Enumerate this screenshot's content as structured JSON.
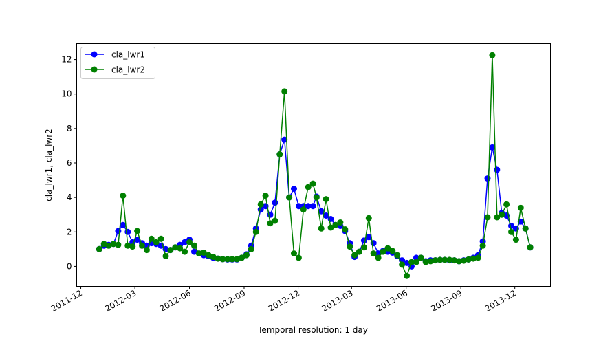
{
  "chart_data": {
    "type": "line",
    "title": "",
    "xlabel": "Temporal resolution: 1 day",
    "ylabel": "cla_lwr1, cla_lwr2",
    "xlim": [
      "2011-11-24",
      "2014-01-30"
    ],
    "ylim": [
      -1.16,
      12.92
    ],
    "grid": false,
    "legend_position": "top-left",
    "x_ticks": [
      {
        "date": "2011-12-01",
        "label": "2011-12"
      },
      {
        "date": "2012-03-01",
        "label": "2012-03"
      },
      {
        "date": "2012-06-01",
        "label": "2012-06"
      },
      {
        "date": "2012-09-01",
        "label": "2012-09"
      },
      {
        "date": "2012-12-01",
        "label": "2012-12"
      },
      {
        "date": "2013-03-01",
        "label": "2013-03"
      },
      {
        "date": "2013-06-01",
        "label": "2013-06"
      },
      {
        "date": "2013-09-01",
        "label": "2013-09"
      },
      {
        "date": "2013-12-01",
        "label": "2013-12"
      }
    ],
    "y_ticks": [
      0,
      2,
      4,
      6,
      8,
      10,
      12
    ],
    "x": [
      "2012-01-01",
      "2012-01-09",
      "2012-01-17",
      "2012-01-25",
      "2012-02-02",
      "2012-02-10",
      "2012-02-18",
      "2012-02-26",
      "2012-03-05",
      "2012-03-13",
      "2012-03-21",
      "2012-03-29",
      "2012-04-06",
      "2012-04-14",
      "2012-04-22",
      "2012-04-30",
      "2012-05-08",
      "2012-05-16",
      "2012-05-24",
      "2012-06-01",
      "2012-06-09",
      "2012-06-17",
      "2012-06-25",
      "2012-07-03",
      "2012-07-11",
      "2012-07-19",
      "2012-07-27",
      "2012-08-04",
      "2012-08-12",
      "2012-08-20",
      "2012-08-28",
      "2012-09-05",
      "2012-09-13",
      "2012-09-21",
      "2012-09-29",
      "2012-10-07",
      "2012-10-15",
      "2012-10-23",
      "2012-10-31",
      "2012-11-08",
      "2012-11-16",
      "2012-11-24",
      "2012-12-02",
      "2012-12-10",
      "2012-12-18",
      "2012-12-26",
      "2013-01-01",
      "2013-01-09",
      "2013-01-17",
      "2013-01-25",
      "2013-02-02",
      "2013-02-10",
      "2013-02-18",
      "2013-02-26",
      "2013-03-06",
      "2013-03-14",
      "2013-03-22",
      "2013-03-30",
      "2013-04-07",
      "2013-04-15",
      "2013-04-23",
      "2013-05-01",
      "2013-05-09",
      "2013-05-17",
      "2013-05-25",
      "2013-06-02",
      "2013-06-10",
      "2013-06-18",
      "2013-06-26",
      "2013-07-04",
      "2013-07-12",
      "2013-07-20",
      "2013-07-28",
      "2013-08-05",
      "2013-08-13",
      "2013-08-21",
      "2013-08-29",
      "2013-09-06",
      "2013-09-14",
      "2013-09-22",
      "2013-09-30",
      "2013-10-08",
      "2013-10-16",
      "2013-10-24",
      "2013-11-01",
      "2013-11-09",
      "2013-11-17",
      "2013-11-25",
      "2013-12-03",
      "2013-12-11",
      "2013-12-19",
      "2013-12-27"
    ],
    "series": [
      {
        "name": "cla_lwr1",
        "color": "#0000ff",
        "marker": "circle",
        "values": [
          1.0,
          1.2,
          1.25,
          1.3,
          2.05,
          2.4,
          2.0,
          1.4,
          1.55,
          1.35,
          1.2,
          1.35,
          1.3,
          1.2,
          1.0,
          0.95,
          1.1,
          1.25,
          1.4,
          1.55,
          0.85,
          0.75,
          0.65,
          0.6,
          0.5,
          0.45,
          0.42,
          0.4,
          0.4,
          0.4,
          0.5,
          0.7,
          1.2,
          2.2,
          3.3,
          3.5,
          3.0,
          3.7,
          6.5,
          7.35,
          4.0,
          4.5,
          3.5,
          3.5,
          3.5,
          3.5,
          4.05,
          3.2,
          2.95,
          2.75,
          2.4,
          2.35,
          2.05,
          1.35,
          0.55,
          0.85,
          1.5,
          1.7,
          1.35,
          0.75,
          0.9,
          0.85,
          0.8,
          0.6,
          0.35,
          0.2,
          0.0,
          0.5,
          0.5,
          0.3,
          0.35,
          0.35,
          0.38,
          0.38,
          0.35,
          0.35,
          0.3,
          0.35,
          0.4,
          0.5,
          0.65,
          1.45,
          5.1,
          6.9,
          5.6,
          3.1,
          2.95,
          2.35,
          2.2,
          2.6,
          2.2,
          1.1
        ]
      },
      {
        "name": "cla_lwr2",
        "color": "#008000",
        "marker": "circle",
        "values": [
          1.0,
          1.3,
          1.2,
          1.3,
          1.25,
          4.1,
          1.2,
          1.15,
          2.05,
          1.2,
          0.95,
          1.6,
          1.4,
          1.6,
          0.6,
          0.95,
          1.1,
          1.05,
          0.85,
          1.4,
          1.2,
          0.75,
          0.8,
          0.65,
          0.55,
          0.45,
          0.42,
          0.42,
          0.42,
          0.42,
          0.5,
          0.65,
          1.0,
          2.0,
          3.6,
          4.1,
          2.5,
          2.65,
          6.5,
          10.15,
          4.0,
          0.75,
          0.5,
          3.3,
          4.6,
          4.8,
          4.0,
          2.2,
          3.9,
          2.25,
          2.4,
          2.55,
          2.15,
          1.15,
          0.65,
          0.85,
          1.1,
          2.8,
          0.75,
          0.5,
          0.85,
          1.05,
          0.9,
          0.65,
          0.1,
          -0.55,
          0.25,
          0.25,
          0.5,
          0.25,
          0.3,
          0.35,
          0.38,
          0.38,
          0.38,
          0.35,
          0.3,
          0.33,
          0.4,
          0.45,
          0.5,
          1.2,
          2.85,
          12.25,
          2.85,
          3.0,
          3.6,
          2.0,
          1.55,
          3.4,
          2.2,
          1.1
        ]
      }
    ]
  }
}
